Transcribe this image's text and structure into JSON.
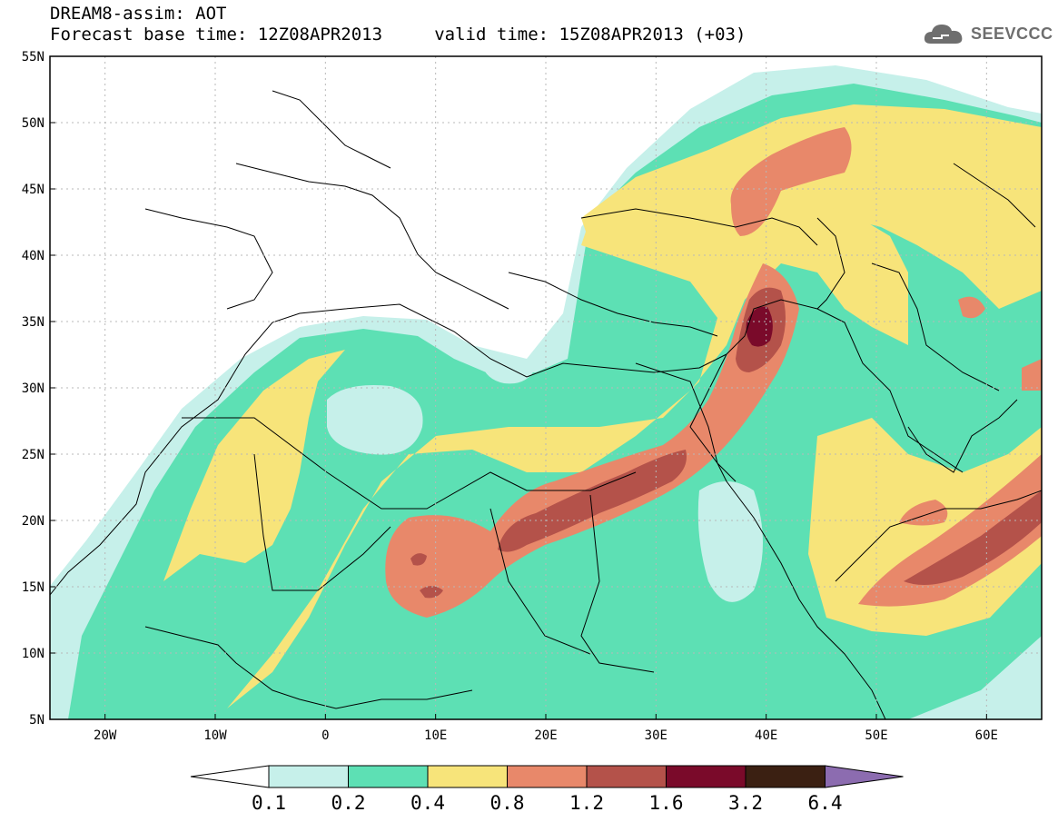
{
  "header": {
    "title": "DREAM8-assim: AOT",
    "subtitle": "Forecast base time: 12Z08APR2013     valid time: 15Z08APR2013 (+03)"
  },
  "logo": {
    "text": "SEEVCCC",
    "icon": "cloud-icon",
    "color": "#6e6e6e"
  },
  "map": {
    "lat_labels": [
      "55N",
      "50N",
      "45N",
      "40N",
      "35N",
      "30N",
      "25N",
      "20N",
      "15N",
      "10N",
      "5N"
    ],
    "lon_labels": [
      "20W",
      "10W",
      "0",
      "10E",
      "20E",
      "30E",
      "40E",
      "50E",
      "60E"
    ],
    "lat_range": [
      5,
      55
    ],
    "lon_range": [
      -25,
      65
    ],
    "grid": "dotted"
  },
  "colorbar": {
    "labels": [
      "0.1",
      "0.2",
      "0.4",
      "0.8",
      "1.2",
      "1.6",
      "3.2",
      "6.4"
    ],
    "colors": [
      "#ffffff",
      "#c6f0ea",
      "#5de0b4",
      "#f7e47a",
      "#e8886a",
      "#b4524a",
      "#7a0a2a",
      "#3b2012",
      "#8c6cb0"
    ]
  }
}
